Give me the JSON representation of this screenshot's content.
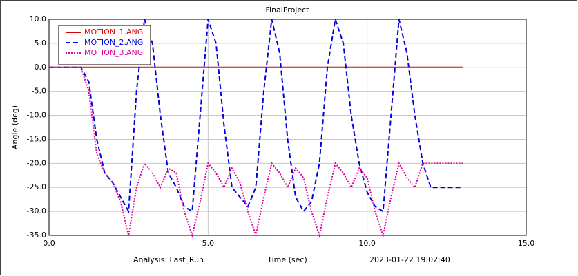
{
  "chart_data": {
    "type": "line",
    "title": "FinalProject",
    "x_label": "Time (sec)",
    "y_label": "Angle (deg)",
    "footer_left": "Analysis:  Last_Run",
    "footer_right": "2023-01-22 19:02:40",
    "x": [
      0,
      0.25,
      0.5,
      0.75,
      1,
      1.25,
      1.5,
      1.75,
      2,
      2.25,
      2.5,
      2.75,
      3,
      3.25,
      3.5,
      3.75,
      4,
      4.25,
      4.5,
      4.75,
      5,
      5.25,
      5.5,
      5.75,
      6,
      6.25,
      6.5,
      6.75,
      7,
      7.25,
      7.5,
      7.75,
      8,
      8.25,
      8.5,
      8.75,
      9,
      9.25,
      9.5,
      9.75,
      10,
      10.25,
      10.5,
      10.75,
      11,
      11.25,
      11.5,
      11.75,
      12,
      12.25,
      12.5,
      12.75,
      13
    ],
    "series": [
      {
        "name": "MOTION_1.ANG",
        "color": "#e00000",
        "dash": "solid",
        "values": [
          0,
          0,
          0,
          0,
          0,
          0,
          0,
          0,
          0,
          0,
          0,
          0,
          0,
          0,
          0,
          0,
          0,
          0,
          0,
          0,
          0,
          0,
          0,
          0,
          0,
          0,
          0,
          0,
          0,
          0,
          0,
          0,
          0,
          0,
          0,
          0,
          0,
          0,
          0,
          0,
          0,
          0,
          0,
          0,
          0,
          0,
          0,
          0,
          0,
          0,
          0,
          0,
          0
        ]
      },
      {
        "name": "MOTION_2.ANG",
        "color": "#0000e0",
        "dash": "dashed",
        "values": [
          0,
          0,
          0,
          0,
          0,
          -3,
          -15,
          -22,
          -24,
          -27,
          -30,
          -5,
          10,
          5,
          -10,
          -22,
          -25,
          -29,
          -30,
          -10,
          10,
          5,
          -12,
          -25,
          -27,
          -29,
          -25,
          -5,
          10,
          3,
          -15,
          -27,
          -30,
          -28,
          -20,
          0,
          10,
          5,
          -10,
          -20,
          -26,
          -29,
          -30,
          -10,
          10,
          3,
          -10,
          -20,
          -25,
          -25,
          -25,
          -25,
          -25
        ]
      },
      {
        "name": "MOTION_3.ANG",
        "color": "#e000a0",
        "dash": "dotted",
        "values": [
          0,
          0,
          0,
          0,
          0,
          -5,
          -18,
          -22,
          -24,
          -28,
          -35,
          -25,
          -20,
          -22,
          -25,
          -21,
          -22,
          -30,
          -35,
          -28,
          -20,
          -22,
          -25,
          -21,
          -24,
          -30,
          -35,
          -27,
          -20,
          -22,
          -25,
          -21,
          -23,
          -30,
          -35,
          -27,
          -20,
          -22,
          -25,
          -21,
          -23,
          -30,
          -35,
          -27,
          -20,
          -23,
          -25,
          -20,
          -20,
          -20,
          -20,
          -20,
          -20
        ]
      }
    ],
    "xlim": [
      0,
      15
    ],
    "xticks": [
      {
        "value": 0,
        "label": "0.0"
      },
      {
        "value": 5,
        "label": "5.0"
      },
      {
        "value": 10,
        "label": "10.0"
      },
      {
        "value": 15,
        "label": "15.0"
      }
    ],
    "ylim": [
      -35,
      10
    ],
    "yticks": [
      {
        "value": 10,
        "label": "10.0"
      },
      {
        "value": 5,
        "label": "5.0"
      },
      {
        "value": 0,
        "label": "0.0"
      },
      {
        "value": -5,
        "label": "-5.0"
      },
      {
        "value": -10,
        "label": "-10.0"
      },
      {
        "value": -15,
        "label": "-15.0"
      },
      {
        "value": -20,
        "label": "-20.0"
      },
      {
        "value": -25,
        "label": "-25.0"
      },
      {
        "value": -30,
        "label": "-30.0"
      },
      {
        "value": -35,
        "label": "-35.0"
      }
    ],
    "grid": true,
    "legend": "upper-left"
  }
}
